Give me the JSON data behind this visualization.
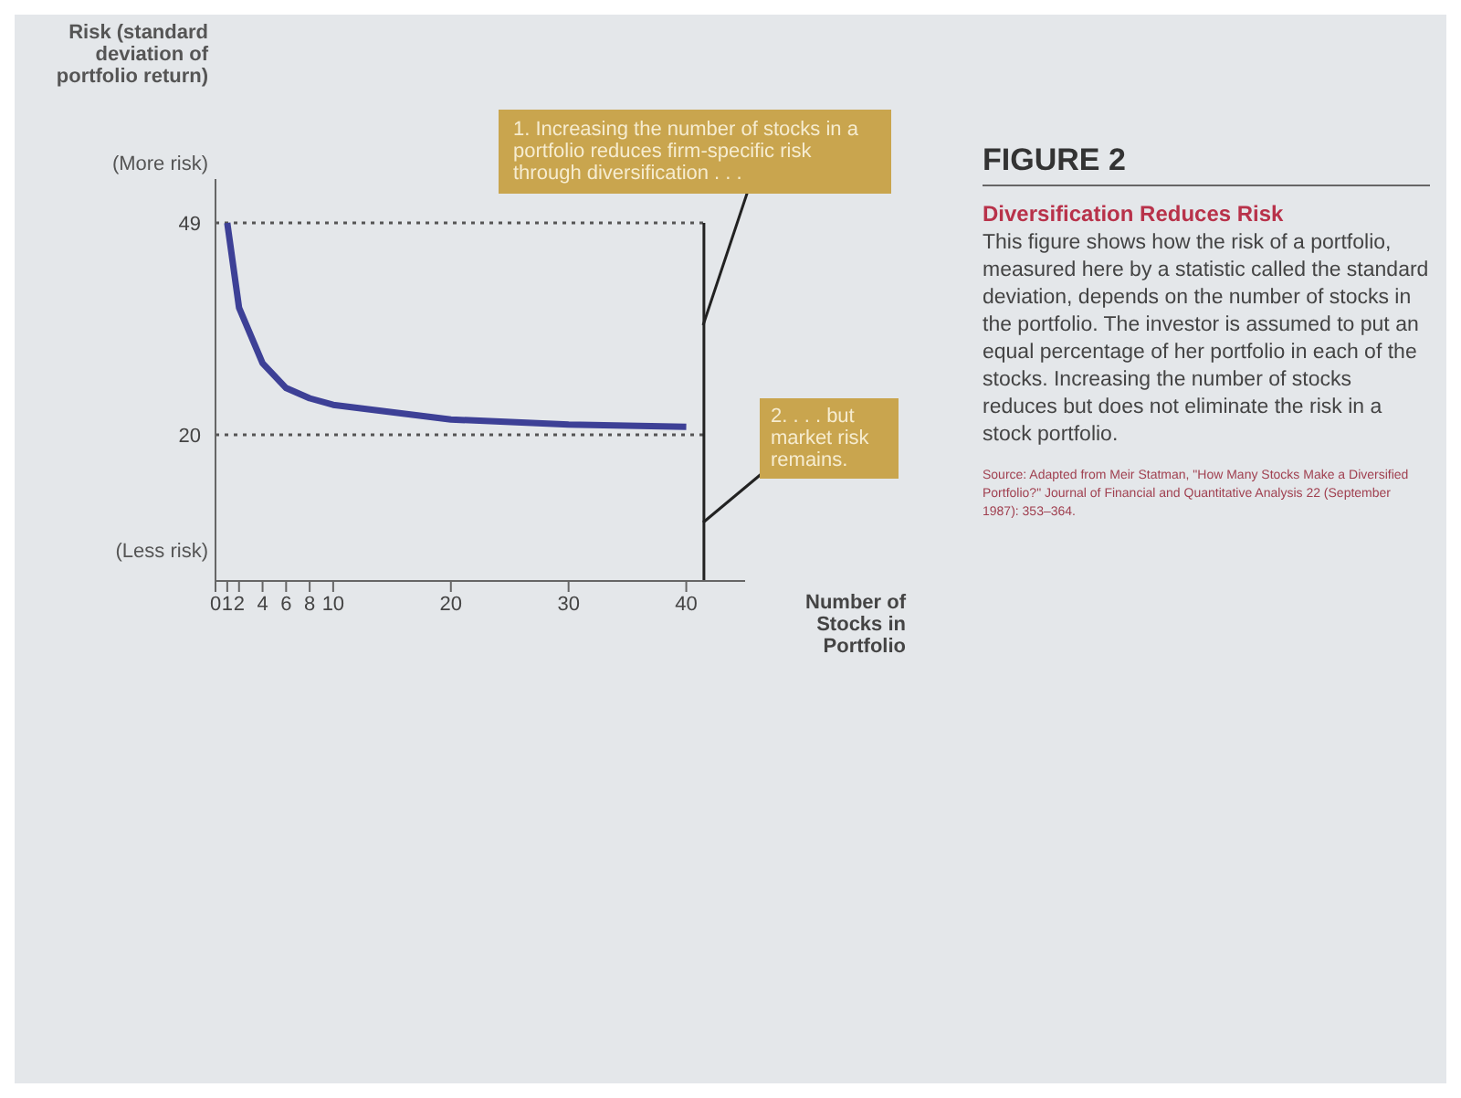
{
  "chart_data": {
    "type": "line",
    "title": "FIGURE 2",
    "subtitle": "Diversification Reduces Risk",
    "ylabel": "Risk (standard deviation of portfolio return)",
    "xlabel": "Number of Stocks in Portfolio",
    "x": [
      1,
      2,
      4,
      6,
      8,
      10,
      20,
      30,
      40
    ],
    "series": [
      {
        "color": "#3d4096",
        "values": [
          49,
          37.4,
          29.8,
          26.4,
          25,
          24.1,
          22.1,
          21.4,
          21.1
        ]
      }
    ],
    "xlim": [
      0,
      45
    ],
    "xticks": [
      0,
      1,
      2,
      4,
      6,
      8,
      10,
      20,
      30,
      40
    ],
    "ylim": [
      0,
      55
    ],
    "yticks": [
      20,
      49
    ],
    "ref_lines": [
      {
        "axis": "y",
        "value": 49,
        "line_style": "dotted",
        "color": "#555555"
      },
      {
        "axis": "y",
        "value": 20,
        "line_style": "dotted",
        "color": "#555555"
      },
      {
        "axis": "x",
        "value": 41.5,
        "line_style": "solid",
        "color": "#222222"
      }
    ],
    "annotations": [
      {
        "text": "1. Increasing the number of stocks in a portfolio reduces firm-specific risk through diversification . . .",
        "x": 41.5,
        "y": 35
      },
      {
        "text": "2. . . . but market risk remains.",
        "x": 41.5,
        "y": 8
      },
      "(More risk)",
      "(Less risk)",
      "This figure shows how the risk of a portfolio, measured here by a statistic called the standard deviation, depends on the number of stocks in the portfolio. The investor is assumed to put an equal percentage of her portfolio in each of the stocks. Increasing the number of stocks reduces but does not eliminate the risk in a stock portfolio.",
      "Source: Adapted from Meir Statman, \"How Many Stocks Make a Diversified Portfolio?\" Journal of Financial and Quantitative Analysis 22 (September 1987): 353–364."
    ],
    "grid": false,
    "legend": false,
    "marker": "none",
    "line_style": "solid"
  }
}
